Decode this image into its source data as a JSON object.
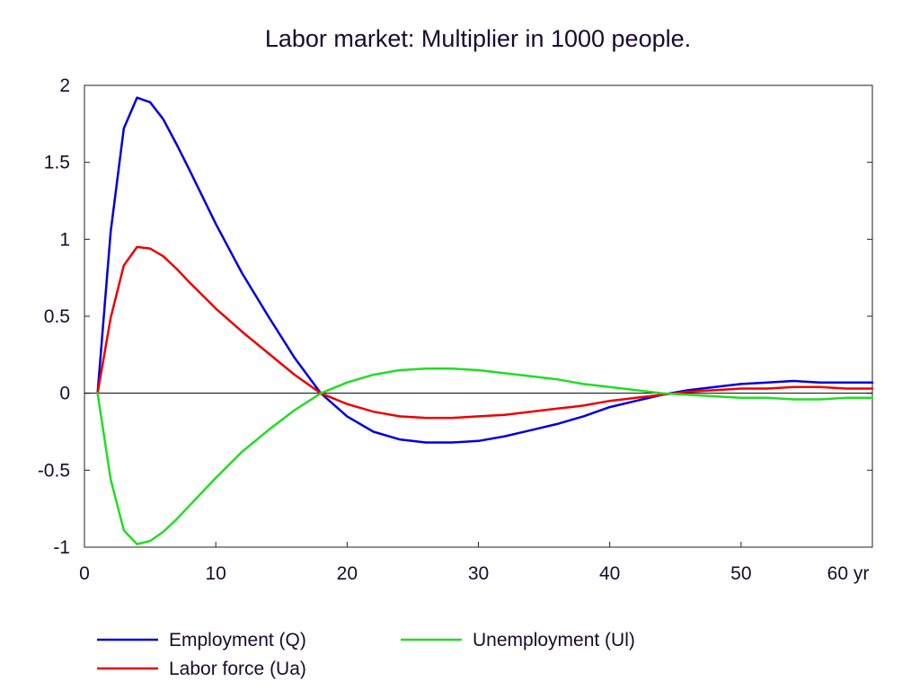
{
  "chart_data": {
    "type": "line",
    "title": "Labor market: Multiplier in 1000 people.",
    "xlabel": "",
    "ylabel": "",
    "x_unit_label": "yr",
    "xlim": [
      0,
      60
    ],
    "ylim": [
      -1,
      2
    ],
    "xticks": [
      0,
      10,
      20,
      30,
      40,
      50,
      60
    ],
    "xtick_labels": [
      "0",
      "10",
      "20",
      "30",
      "40",
      "50",
      "60 yr"
    ],
    "yticks": [
      -1,
      -0.5,
      0,
      0.5,
      1,
      1.5,
      2
    ],
    "ytick_labels": [
      "-1",
      "-0.5",
      "0",
      "0.5",
      "1",
      "1.5",
      "2"
    ],
    "grid": false,
    "zero_line": true,
    "legend_position": "bottom",
    "x": [
      1,
      2,
      3,
      4,
      5,
      6,
      7,
      8,
      10,
      12,
      14,
      16,
      18,
      20,
      22,
      24,
      26,
      28,
      30,
      32,
      34,
      36,
      38,
      40,
      42,
      44,
      46,
      48,
      50,
      52,
      54,
      56,
      58,
      60
    ],
    "series": [
      {
        "name": "Employment (Q)",
        "color": "#0000dd",
        "values": [
          0,
          1.05,
          1.72,
          1.92,
          1.89,
          1.78,
          1.62,
          1.45,
          1.1,
          0.78,
          0.5,
          0.23,
          0.0,
          -0.15,
          -0.25,
          -0.3,
          -0.32,
          -0.32,
          -0.31,
          -0.28,
          -0.24,
          -0.2,
          -0.15,
          -0.09,
          -0.05,
          -0.01,
          0.02,
          0.04,
          0.06,
          0.07,
          0.08,
          0.07,
          0.07,
          0.07
        ]
      },
      {
        "name": "Labor force (Ua)",
        "color": "#ee0000",
        "values": [
          0,
          0.49,
          0.83,
          0.95,
          0.94,
          0.89,
          0.81,
          0.72,
          0.55,
          0.4,
          0.26,
          0.12,
          0.0,
          -0.07,
          -0.12,
          -0.15,
          -0.16,
          -0.16,
          -0.15,
          -0.14,
          -0.12,
          -0.1,
          -0.08,
          -0.05,
          -0.03,
          -0.01,
          0.01,
          0.02,
          0.03,
          0.03,
          0.04,
          0.04,
          0.03,
          0.03
        ]
      },
      {
        "name": "Unemployment (Ul)",
        "color": "#22dd22",
        "values": [
          0,
          -0.56,
          -0.89,
          -0.98,
          -0.96,
          -0.9,
          -0.82,
          -0.73,
          -0.55,
          -0.38,
          -0.24,
          -0.11,
          0.0,
          0.07,
          0.12,
          0.15,
          0.16,
          0.16,
          0.15,
          0.13,
          0.11,
          0.09,
          0.06,
          0.04,
          0.02,
          0.0,
          -0.01,
          -0.02,
          -0.03,
          -0.03,
          -0.04,
          -0.04,
          -0.03,
          -0.03
        ]
      }
    ]
  }
}
